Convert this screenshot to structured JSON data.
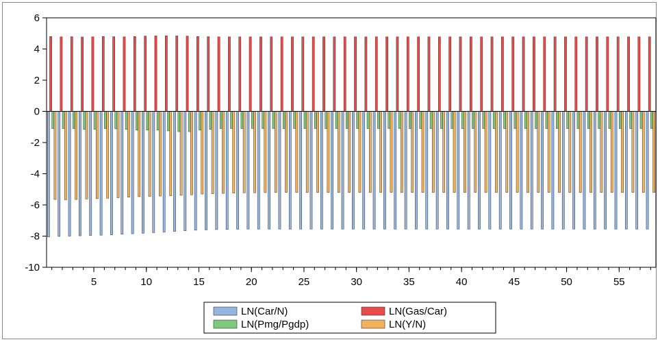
{
  "chart_data": {
    "type": "bar",
    "x": [
      1,
      2,
      3,
      4,
      5,
      6,
      7,
      8,
      9,
      10,
      11,
      12,
      13,
      14,
      15,
      16,
      17,
      18,
      19,
      20,
      21,
      22,
      23,
      24,
      25,
      26,
      27,
      28,
      29,
      30,
      31,
      32,
      33,
      34,
      35,
      36,
      37,
      38,
      39,
      40,
      41,
      42,
      43,
      44,
      45,
      46,
      47,
      48,
      49,
      50,
      51,
      52,
      53,
      54,
      55,
      56,
      57,
      58
    ],
    "xticks": [
      5,
      10,
      15,
      20,
      25,
      30,
      35,
      40,
      45,
      50,
      55
    ],
    "yticks": [
      6,
      4,
      2,
      0,
      -2,
      -4,
      -6,
      -8,
      -10
    ],
    "ylim": [
      -10,
      6
    ],
    "xlim": [
      0.5,
      58.5
    ],
    "grid": false,
    "legend_position": "bottom-center",
    "series": [
      {
        "name": "LN(Car/N)",
        "color": "#95b4de",
        "values": [
          -8.05,
          -8.02,
          -8.0,
          -7.98,
          -7.96,
          -7.94,
          -7.92,
          -7.88,
          -7.85,
          -7.82,
          -7.78,
          -7.74,
          -7.7,
          -7.66,
          -7.62,
          -7.6,
          -7.58,
          -7.57,
          -7.56,
          -7.55,
          -7.55,
          -7.55,
          -7.55,
          -7.55,
          -7.55,
          -7.55,
          -7.55,
          -7.55,
          -7.55,
          -7.55,
          -7.55,
          -7.55,
          -7.55,
          -7.55,
          -7.55,
          -7.55,
          -7.55,
          -7.55,
          -7.55,
          -7.55,
          -7.55,
          -7.55,
          -7.55,
          -7.55,
          -7.55,
          -7.55,
          -7.55,
          -7.55,
          -7.55,
          -7.55,
          -7.55,
          -7.55,
          -7.55,
          -7.55,
          -7.55,
          -7.55,
          -7.55,
          -7.55
        ]
      },
      {
        "name": "LN(Gas/Car)",
        "color": "#e94b4b",
        "values": [
          4.8,
          4.78,
          4.79,
          4.77,
          4.78,
          4.8,
          4.79,
          4.78,
          4.8,
          4.83,
          4.84,
          4.85,
          4.84,
          4.83,
          4.8,
          4.79,
          4.78,
          4.78,
          4.78,
          4.78,
          4.78,
          4.78,
          4.78,
          4.78,
          4.78,
          4.78,
          4.78,
          4.78,
          4.78,
          4.78,
          4.78,
          4.78,
          4.78,
          4.78,
          4.78,
          4.78,
          4.78,
          4.78,
          4.78,
          4.78,
          4.78,
          4.78,
          4.78,
          4.78,
          4.78,
          4.78,
          4.78,
          4.78,
          4.78,
          4.78,
          4.78,
          4.78,
          4.78,
          4.78,
          4.78,
          4.78,
          4.78,
          4.78
        ]
      },
      {
        "name": "LN(Pmg/Pgdp)",
        "color": "#7ec97e",
        "values": [
          -1.1,
          -1.1,
          -1.1,
          -1.15,
          -1.15,
          -1.1,
          -1.12,
          -1.15,
          -1.2,
          -1.2,
          -1.2,
          -1.25,
          -1.3,
          -1.3,
          -1.2,
          -1.15,
          -1.1,
          -1.1,
          -1.1,
          -1.1,
          -1.1,
          -1.1,
          -1.1,
          -1.1,
          -1.1,
          -1.1,
          -1.1,
          -1.1,
          -1.1,
          -1.1,
          -1.1,
          -1.1,
          -1.1,
          -1.1,
          -1.1,
          -1.1,
          -1.1,
          -1.1,
          -1.1,
          -1.1,
          -1.1,
          -1.1,
          -1.1,
          -1.1,
          -1.1,
          -1.1,
          -1.1,
          -1.1,
          -1.1,
          -1.1,
          -1.1,
          -1.1,
          -1.1,
          -1.1,
          -1.1,
          -1.1,
          -1.1,
          -1.1
        ]
      },
      {
        "name": "LN(Y/N)",
        "color": "#f2b25c",
        "values": [
          -5.65,
          -5.67,
          -5.65,
          -5.62,
          -5.6,
          -5.57,
          -5.54,
          -5.5,
          -5.47,
          -5.45,
          -5.43,
          -5.41,
          -5.38,
          -5.35,
          -5.3,
          -5.28,
          -5.26,
          -5.24,
          -5.22,
          -5.22,
          -5.21,
          -5.2,
          -5.2,
          -5.2,
          -5.2,
          -5.2,
          -5.2,
          -5.2,
          -5.2,
          -5.2,
          -5.2,
          -5.2,
          -5.2,
          -5.2,
          -5.2,
          -5.2,
          -5.2,
          -5.2,
          -5.2,
          -5.2,
          -5.2,
          -5.2,
          -5.2,
          -5.2,
          -5.2,
          -5.2,
          -5.2,
          -5.2,
          -5.2,
          -5.2,
          -5.2,
          -5.2,
          -5.2,
          -5.2,
          -5.2,
          -5.2,
          -5.2,
          -5.2
        ]
      }
    ]
  }
}
